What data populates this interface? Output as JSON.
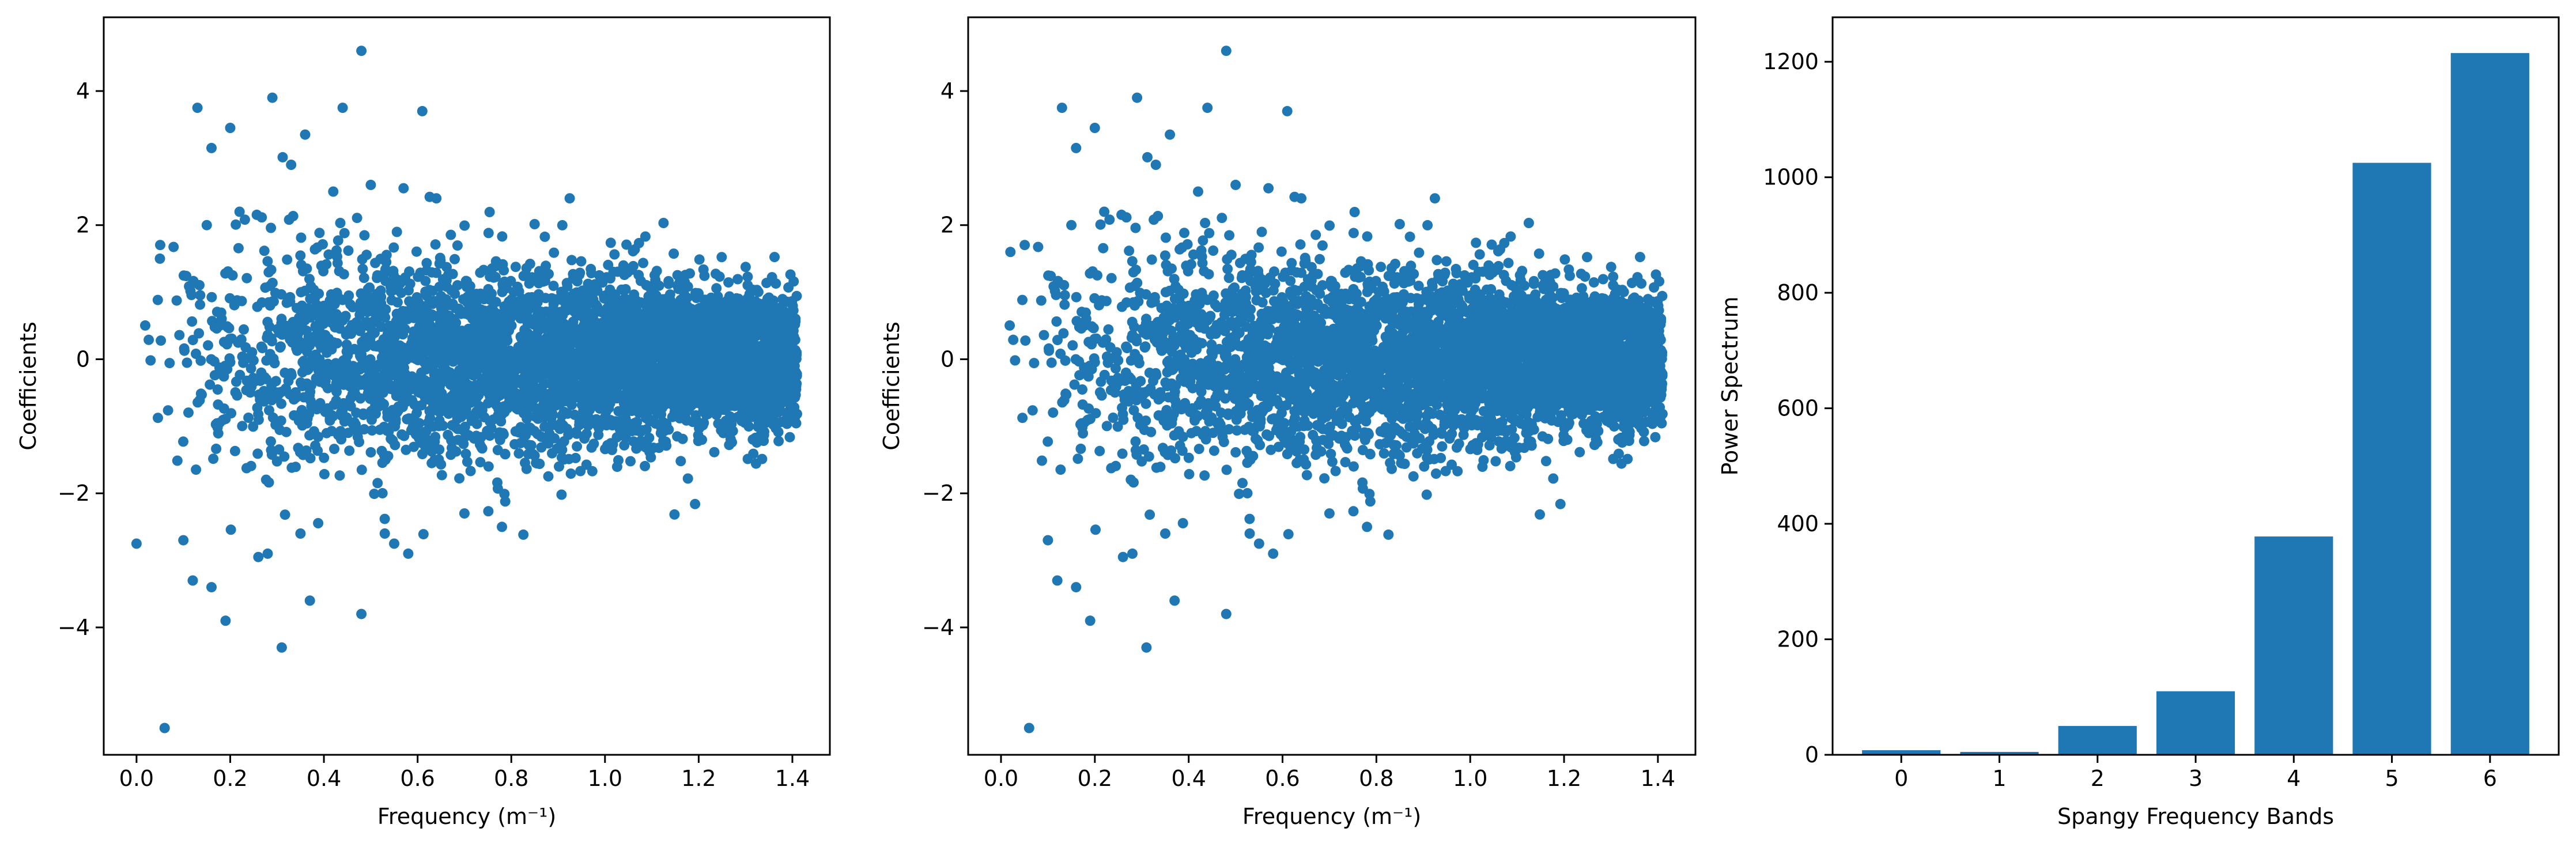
{
  "colors": {
    "series": "#1f77b4",
    "axes": "#000000",
    "background": "#ffffff"
  },
  "chart_data": [
    {
      "type": "scatter",
      "title": "",
      "xlabel": "Frequency (m⁻¹)",
      "ylabel": "Coefficients",
      "xlim": [
        -0.07,
        1.48
      ],
      "ylim": [
        -5.9,
        5.1
      ],
      "xticks": [
        0.0,
        0.2,
        0.4,
        0.6,
        0.8,
        1.0,
        1.2,
        1.4
      ],
      "xtick_labels": [
        "0.0",
        "0.2",
        "0.4",
        "0.6",
        "0.8",
        "1.0",
        "1.2",
        "1.4"
      ],
      "yticks": [
        -4,
        -2,
        0,
        2,
        4
      ],
      "ytick_labels": [
        "−4",
        "−2",
        "0",
        "2",
        "4"
      ],
      "grid": false,
      "x": [
        0.0,
        0.06,
        0.13,
        0.16,
        0.2,
        0.29,
        0.31,
        0.33,
        0.36,
        0.44,
        0.48,
        0.48,
        0.55,
        0.58,
        0.61,
        0.16,
        0.19,
        0.26,
        0.37,
        0.42,
        0.05,
        0.1,
        0.12,
        0.15,
        0.22,
        0.28,
        0.35,
        0.5,
        0.53,
        0.57,
        0.64,
        0.7,
        0.78
      ],
      "y": [
        -2.75,
        -5.5,
        3.75,
        3.15,
        3.45,
        3.9,
        -4.3,
        2.9,
        3.35,
        3.75,
        4.6,
        -3.8,
        -2.75,
        -2.9,
        3.7,
        -3.4,
        -3.9,
        -2.95,
        -3.6,
        2.5,
        1.5,
        -2.7,
        -3.3,
        2.0,
        2.2,
        -2.9,
        -2.6,
        2.6,
        -2.6,
        2.55,
        2.4,
        -2.3,
        -2.5
      ],
      "dense_band": {
        "x_range": [
          0.0,
          1.41
        ],
        "y_spread_start": 2.0,
        "y_spread_end": 0.9,
        "approx_count": 4500
      }
    },
    {
      "type": "scatter",
      "title": "",
      "xlabel": "Frequency (m⁻¹)",
      "ylabel": "Coefficients",
      "xlim": [
        -0.07,
        1.48
      ],
      "ylim": [
        -5.9,
        5.1
      ],
      "xticks": [
        0.0,
        0.2,
        0.4,
        0.6,
        0.8,
        1.0,
        1.2,
        1.4
      ],
      "xtick_labels": [
        "0.0",
        "0.2",
        "0.4",
        "0.6",
        "0.8",
        "1.0",
        "1.2",
        "1.4"
      ],
      "yticks": [
        -4,
        -2,
        0,
        2,
        4
      ],
      "ytick_labels": [
        "−4",
        "−2",
        "0",
        "2",
        "4"
      ],
      "grid": false,
      "x": [
        0.06,
        0.13,
        0.16,
        0.2,
        0.29,
        0.31,
        0.33,
        0.36,
        0.44,
        0.48,
        0.48,
        0.55,
        0.58,
        0.61,
        0.16,
        0.19,
        0.26,
        0.37,
        0.42,
        0.02,
        0.1,
        0.12,
        0.15,
        0.22,
        0.28,
        0.35,
        0.5,
        0.53,
        0.57,
        0.64,
        0.7,
        0.78
      ],
      "y": [
        -5.5,
        3.75,
        3.15,
        3.45,
        3.9,
        -4.3,
        2.9,
        3.35,
        3.75,
        4.6,
        -3.8,
        -2.75,
        -2.9,
        3.7,
        -3.4,
        -3.9,
        -2.95,
        -3.6,
        2.5,
        1.6,
        -2.7,
        -3.3,
        2.0,
        2.2,
        -2.9,
        -2.6,
        2.6,
        -2.6,
        2.55,
        2.4,
        -2.3,
        -2.5
      ],
      "dense_band": {
        "x_range": [
          0.0,
          1.41
        ],
        "y_spread_start": 2.0,
        "y_spread_end": 0.9,
        "approx_count": 4500
      }
    },
    {
      "type": "bar",
      "title": "",
      "xlabel": "Spangy Frequency Bands",
      "ylabel": "Power Spectrum",
      "categories": [
        "0",
        "1",
        "2",
        "3",
        "4",
        "5",
        "6"
      ],
      "values": [
        8,
        5,
        50,
        110,
        378,
        1025,
        1215
      ],
      "xlim": [
        -0.7,
        6.7
      ],
      "ylim": [
        0,
        1277
      ],
      "yticks": [
        0,
        200,
        400,
        600,
        800,
        1000,
        1200
      ],
      "ytick_labels": [
        "0",
        "200",
        "400",
        "600",
        "800",
        "1000",
        "1200"
      ],
      "grid": false
    }
  ]
}
